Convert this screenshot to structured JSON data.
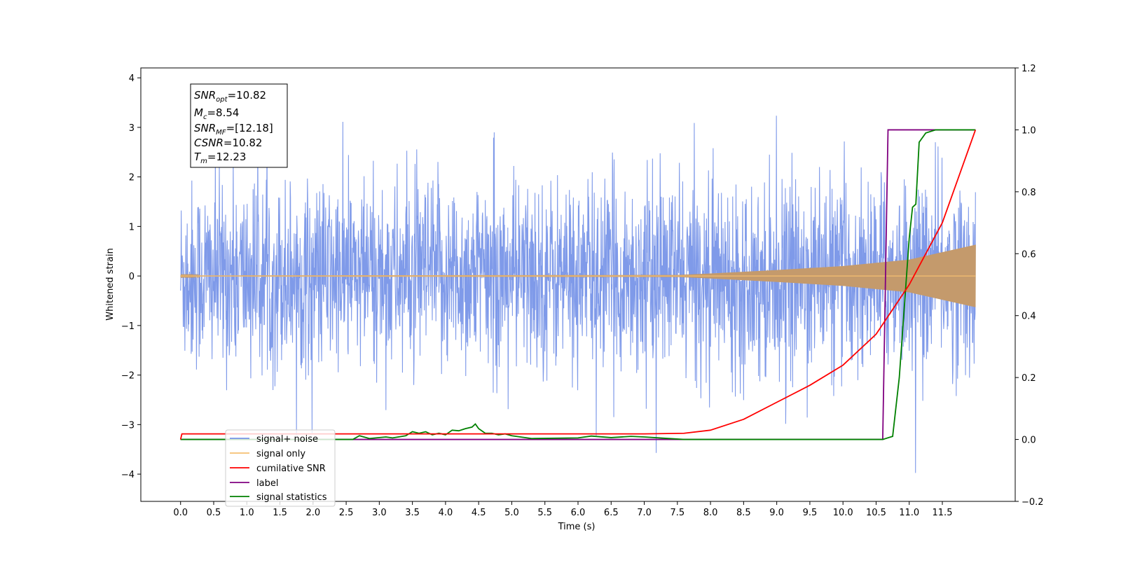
{
  "chart_data": {
    "type": "line",
    "xlabel": "Time (s)",
    "ylabel": "Whitened strain",
    "xlim": [
      -0.6,
      12.6
    ],
    "ylim": [
      -4.55,
      4.2
    ],
    "ylim_right": [
      -0.2,
      1.2
    ],
    "x_ticks": [
      "0.0",
      "0.5",
      "1.0",
      "1.5",
      "2.0",
      "2.5",
      "3.0",
      "3.5",
      "4.0",
      "4.5",
      "5.0",
      "5.5",
      "6.0",
      "6.5",
      "7.0",
      "7.5",
      "8.0",
      "8.5",
      "9.0",
      "9.5",
      "10.0",
      "10.5",
      "11.0",
      "11.5"
    ],
    "y_ticks_left": [
      "4",
      "3",
      "2",
      "1",
      "0",
      "−1",
      "−2",
      "−3",
      "−4"
    ],
    "y_ticks_right": [
      "1.2",
      "1.0",
      "0.8",
      "0.6",
      "0.4",
      "0.2",
      "0.0",
      "−0.2"
    ],
    "grid": false,
    "legend_position": "lower-left",
    "annotation": {
      "snr_opt": {
        "base": "SNR",
        "sub": "opt",
        "value": "=10.82"
      },
      "mc": {
        "base": "M",
        "sub": "c",
        "value": "=8.54"
      },
      "snr_mf": {
        "base": "SNR",
        "sub": "MF",
        "value": "=[12.18]"
      },
      "csnr": {
        "base": "CSNR",
        "sub": "",
        "value": "=10.82"
      },
      "tm": {
        "base": "T",
        "sub": "m",
        "value": "=12.23"
      }
    },
    "series": [
      {
        "name": "signal+ noise",
        "axis": "left",
        "color": "#7895e8",
        "description_noise_std": 0.95,
        "x_range": [
          0.0,
          12.0
        ]
      },
      {
        "name": "signal only",
        "axis": "left",
        "color": "#f5bf70",
        "envelope": [
          [
            0.0,
            0.01
          ],
          [
            7.5,
            0.02
          ],
          [
            8.0,
            0.05
          ],
          [
            9.0,
            0.12
          ],
          [
            10.0,
            0.2
          ],
          [
            11.0,
            0.33
          ],
          [
            12.0,
            0.63
          ]
        ]
      },
      {
        "name": "cumilative SNR",
        "axis": "right",
        "color": "#ff0000",
        "points": [
          [
            0.0,
            0.0
          ],
          [
            0.02,
            0.018
          ],
          [
            7.0,
            0.018
          ],
          [
            7.6,
            0.02
          ],
          [
            8.0,
            0.03
          ],
          [
            8.5,
            0.065
          ],
          [
            9.0,
            0.12
          ],
          [
            9.5,
            0.175
          ],
          [
            10.0,
            0.24
          ],
          [
            10.5,
            0.34
          ],
          [
            11.0,
            0.5
          ],
          [
            11.5,
            0.7
          ],
          [
            12.0,
            1.0
          ]
        ]
      },
      {
        "name": "label",
        "axis": "right",
        "color": "#800080",
        "points": [
          [
            0.0,
            0.0
          ],
          [
            10.6,
            0.0
          ],
          [
            10.68,
            1.0
          ],
          [
            12.0,
            1.0
          ]
        ]
      },
      {
        "name": "signal statistics",
        "axis": "right",
        "color": "#008000",
        "points": [
          [
            0.0,
            0.0
          ],
          [
            2.4,
            0.0
          ],
          [
            2.6,
            0.0
          ],
          [
            2.7,
            0.012
          ],
          [
            2.85,
            0.003
          ],
          [
            3.1,
            0.008
          ],
          [
            3.2,
            0.005
          ],
          [
            3.4,
            0.012
          ],
          [
            3.5,
            0.025
          ],
          [
            3.6,
            0.02
          ],
          [
            3.7,
            0.025
          ],
          [
            3.8,
            0.015
          ],
          [
            3.9,
            0.02
          ],
          [
            4.0,
            0.015
          ],
          [
            4.1,
            0.03
          ],
          [
            4.2,
            0.028
          ],
          [
            4.3,
            0.035
          ],
          [
            4.4,
            0.04
          ],
          [
            4.45,
            0.05
          ],
          [
            4.5,
            0.035
          ],
          [
            4.6,
            0.02
          ],
          [
            4.7,
            0.02
          ],
          [
            4.8,
            0.015
          ],
          [
            4.9,
            0.018
          ],
          [
            5.0,
            0.012
          ],
          [
            5.3,
            0.003
          ],
          [
            6.0,
            0.005
          ],
          [
            6.2,
            0.011
          ],
          [
            6.5,
            0.006
          ],
          [
            6.8,
            0.01
          ],
          [
            7.0,
            0.008
          ],
          [
            7.3,
            0.004
          ],
          [
            7.6,
            0.0
          ],
          [
            10.6,
            0.0
          ],
          [
            10.75,
            0.01
          ],
          [
            10.85,
            0.2
          ],
          [
            10.95,
            0.5
          ],
          [
            11.0,
            0.65
          ],
          [
            11.05,
            0.75
          ],
          [
            11.1,
            0.76
          ],
          [
            11.15,
            0.96
          ],
          [
            11.25,
            0.99
          ],
          [
            11.4,
            1.0
          ],
          [
            12.0,
            1.0
          ]
        ]
      }
    ]
  }
}
